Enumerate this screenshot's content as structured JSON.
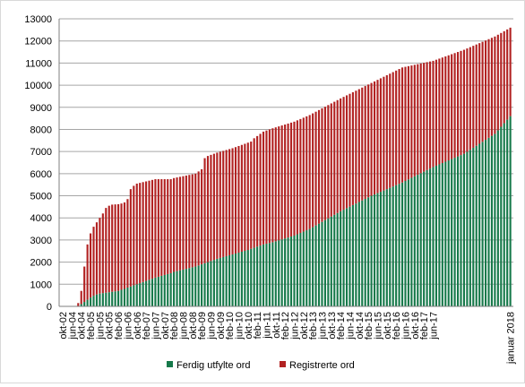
{
  "chart_data": {
    "type": "bar",
    "stacked": true,
    "ylim": [
      0,
      13000
    ],
    "yticks": [
      0,
      1000,
      2000,
      3000,
      4000,
      5000,
      6000,
      7000,
      8000,
      9000,
      10000,
      11000,
      12000,
      13000
    ],
    "grid": true,
    "legend_position": "bottom",
    "categories": [
      "okt-02",
      "jun-04",
      "okt-04",
      "feb-05",
      "jun-05",
      "okt-05",
      "feb-06",
      "jun-06",
      "okt-06",
      "feb-07",
      "jun-07",
      "okt-07",
      "feb-08",
      "jun-08",
      "okt-08",
      "feb-09",
      "jun-09",
      "okt-09",
      "feb-10",
      "jun-10",
      "okt-10",
      "feb-11",
      "jun-11",
      "okt-11",
      "feb-12",
      "jun-12",
      "okt-12",
      "feb-13",
      "jun-13",
      "okt-13",
      "feb-14",
      "jun-14",
      "okt-14",
      "feb-15",
      "jun-15",
      "okt-15",
      "feb-16",
      "jun-16",
      "okt-16",
      "feb-17",
      "jun-17",
      "januar 2018"
    ],
    "total_bars": 146,
    "label_every": 3,
    "anchors": {
      "index": [
        0,
        4,
        5,
        6,
        7,
        8,
        9,
        10,
        11,
        12,
        13,
        14,
        15,
        16,
        18,
        19,
        20,
        21,
        22,
        23,
        24,
        30,
        35,
        36,
        43,
        44,
        45,
        46,
        47,
        48,
        49,
        50,
        55,
        60,
        61,
        62,
        63,
        64,
        65,
        68,
        75,
        80,
        90,
        100,
        110,
        120,
        130,
        140,
        145
      ],
      "ferdig": [
        0,
        0,
        0,
        100,
        200,
        300,
        400,
        480,
        540,
        580,
        600,
        620,
        640,
        660,
        700,
        750,
        790,
        850,
        900,
        950,
        1000,
        1300,
        1500,
        1560,
        1800,
        1850,
        1900,
        1950,
        2000,
        2050,
        2100,
        2150,
        2350,
        2550,
        2600,
        2650,
        2700,
        2750,
        2800,
        2900,
        3200,
        3500,
        4300,
        5000,
        5600,
        6300,
        6900,
        7800,
        8600
      ],
      "registrerte": [
        0,
        0,
        150,
        700,
        1800,
        2800,
        3300,
        3600,
        3800,
        4000,
        4200,
        4450,
        4550,
        4600,
        4620,
        4650,
        4700,
        4850,
        5300,
        5450,
        5550,
        5750,
        5750,
        5800,
        6000,
        6100,
        6200,
        6700,
        6800,
        6850,
        6900,
        6950,
        7150,
        7400,
        7450,
        7600,
        7700,
        7800,
        7900,
        8050,
        8350,
        8650,
        9400,
        10100,
        10800,
        11100,
        11600,
        12200,
        12600
      ]
    },
    "series": [
      {
        "name": "Ferdig utfylte ord",
        "color": "#16794a"
      },
      {
        "name": "Registrerte ord",
        "color": "#b22222"
      }
    ]
  }
}
